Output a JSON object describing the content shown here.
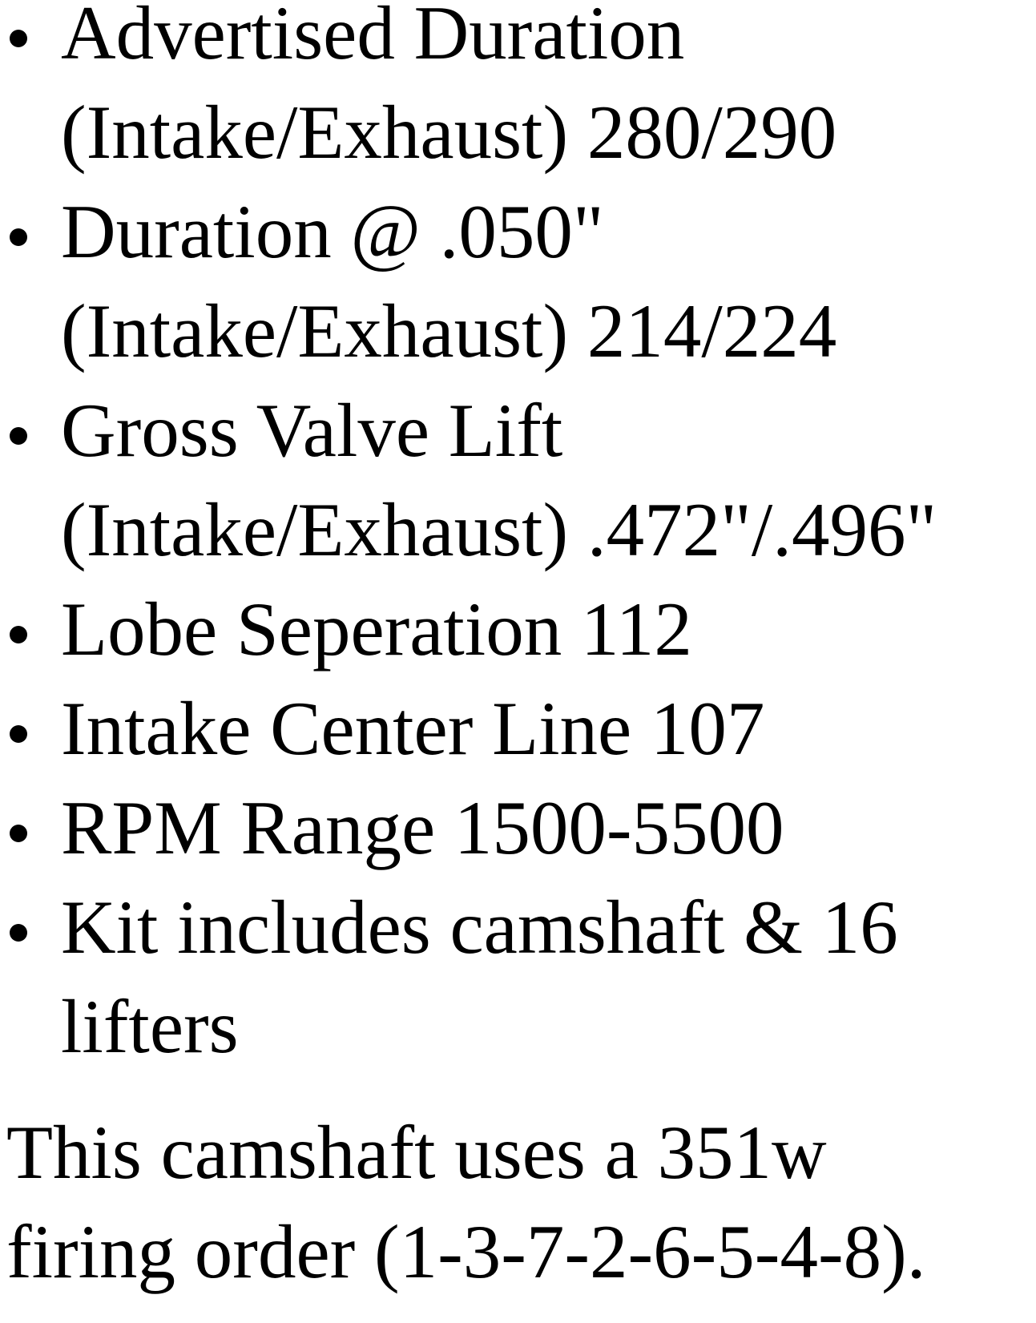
{
  "page": {
    "background_color": "#ffffff",
    "text_color": "#000000"
  },
  "specs": {
    "items": [
      "Advertised Duration (Intake/Exhaust) 280/290",
      "Duration @ .050\" (Intake/Exhaust) 214/224",
      "Gross Valve Lift (Intake/Exhaust) .472\"/.496\"",
      "Lobe Seperation 112",
      "Intake Center Line 107",
      "RPM Range 1500-5500",
      "Kit includes camshaft & 16 lifters"
    ]
  },
  "note": {
    "text": "This camshaft uses a 351w firing order (1-3-7-2-6-5-4-8)."
  }
}
